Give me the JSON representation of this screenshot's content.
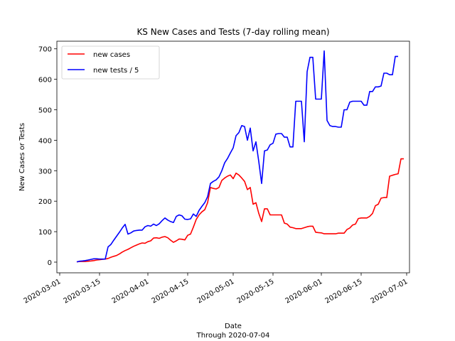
{
  "chart_data": {
    "type": "line",
    "title": "KS New Cases and Tests (7-day rolling mean)",
    "xlabel": "Date",
    "xlabel_sub": "Through 2020-07-04",
    "ylabel": "New Cases or Tests",
    "xlim": [
      "2020-02-29",
      "2020-07-02"
    ],
    "ylim": [
      -35,
      725
    ],
    "x_ticks": [
      "2020-03-01",
      "2020-03-15",
      "2020-04-01",
      "2020-04-15",
      "2020-05-01",
      "2020-05-15",
      "2020-06-01",
      "2020-06-15",
      "2020-07-01"
    ],
    "y_ticks": [
      0,
      100,
      200,
      300,
      400,
      500,
      600,
      700
    ],
    "grid": false,
    "legend_position": "top-left",
    "start_date": "2020-03-07",
    "series": [
      {
        "name": "new cases",
        "color": "#ff0000",
        "values": [
          1,
          2,
          2,
          2,
          3,
          4,
          5,
          7,
          8,
          9,
          10,
          12,
          16,
          19,
          22,
          27,
          33,
          38,
          42,
          47,
          52,
          56,
          60,
          63,
          62,
          67,
          70,
          79,
          80,
          78,
          82,
          84,
          80,
          72,
          65,
          70,
          76,
          75,
          73,
          88,
          92,
          115,
          140,
          155,
          165,
          172,
          195,
          245,
          242,
          240,
          245,
          268,
          276,
          282,
          286,
          274,
          292,
          286,
          276,
          265,
          238,
          245,
          190,
          195,
          160,
          133,
          175,
          175,
          155,
          155,
          155,
          155,
          155,
          128,
          125,
          115,
          113,
          110,
          110,
          110,
          113,
          116,
          118,
          118,
          98,
          97,
          96,
          93,
          93,
          93,
          93,
          93,
          95,
          95,
          95,
          107,
          112,
          122,
          125,
          143,
          145,
          145,
          145,
          150,
          160,
          185,
          190,
          210,
          212,
          212,
          282,
          285,
          288,
          290,
          339,
          339
        ]
      },
      {
        "name": "new tests / 5",
        "color": "#0000ff",
        "values": [
          1,
          3,
          4,
          5,
          7,
          9,
          11,
          11,
          10,
          10,
          10,
          50,
          58,
          72,
          85,
          98,
          112,
          124,
          92,
          96,
          102,
          104,
          105,
          105,
          116,
          120,
          118,
          125,
          120,
          126,
          136,
          145,
          138,
          133,
          130,
          150,
          155,
          152,
          141,
          140,
          142,
          158,
          150,
          170,
          183,
          195,
          215,
          258,
          265,
          270,
          280,
          300,
          326,
          340,
          358,
          375,
          415,
          425,
          448,
          445,
          400,
          440,
          365,
          395,
          330,
          258,
          365,
          368,
          385,
          390,
          420,
          422,
          422,
          410,
          410,
          378,
          378,
          528,
          528,
          528,
          395,
          625,
          672,
          672,
          535,
          535,
          535,
          693,
          465,
          448,
          445,
          445,
          443,
          443,
          500,
          500,
          525,
          528,
          528,
          528,
          528,
          515,
          515,
          560,
          560,
          575,
          575,
          578,
          620,
          620,
          615,
          615,
          675,
          675
        ]
      }
    ]
  }
}
